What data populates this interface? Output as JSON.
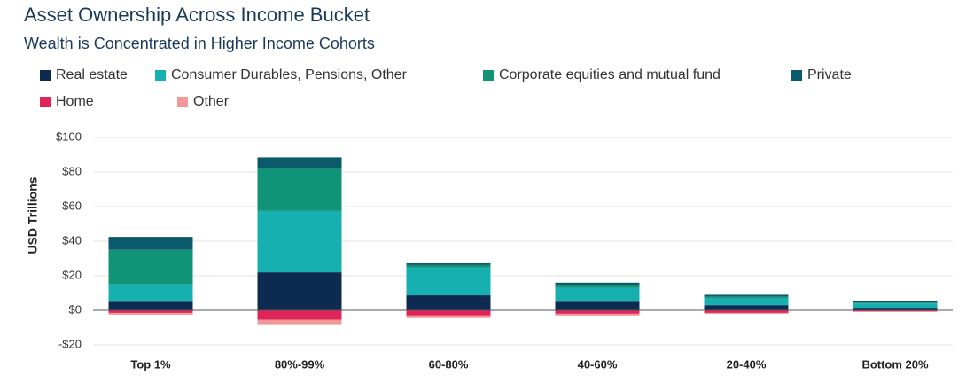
{
  "chart_data": {
    "type": "stacked_bar",
    "title": "Asset Ownership Across Income Bucket",
    "subtitle": "Wealth is Concentrated in Higher Income Cohorts",
    "y_label": "USD Trillions",
    "categories": [
      "Top 1%",
      "80%-99%",
      "60-80%",
      "40-60%",
      "20-40%",
      "Bottom 20%"
    ],
    "series": [
      {
        "name": "Real estate",
        "color": "#0d2b50",
        "values": [
          5,
          22,
          8.7,
          5,
          3,
          1.5
        ]
      },
      {
        "name": "Consumer Durables, Pensions, Other",
        "color": "#17b0b0",
        "values": [
          10,
          35.5,
          16,
          8,
          4,
          2.5
        ]
      },
      {
        "name": "Corporate equities and mutual fund",
        "color": "#119378",
        "values": [
          20,
          25,
          1.5,
          1.5,
          1,
          0.5
        ]
      },
      {
        "name": "Private",
        "color": "#0b5a6c",
        "values": [
          7.5,
          6,
          1,
          1.5,
          1,
          1
        ]
      },
      {
        "name": "Home",
        "color": "#e0245a",
        "values": [
          -1.5,
          -5.5,
          -3,
          -2,
          -1.5,
          -0.5
        ]
      },
      {
        "name": "Other",
        "color": "#f0979a",
        "values": [
          -1,
          -2.5,
          -1.5,
          -1,
          -0.5,
          -0.5
        ]
      }
    ],
    "ylim": [
      -20,
      100
    ],
    "yticks": [
      {
        "value": -20,
        "label": "-$20"
      },
      {
        "value": 0,
        "label": "$0"
      },
      {
        "value": 20,
        "label": "$20"
      },
      {
        "value": 40,
        "label": "$40"
      },
      {
        "value": 60,
        "label": "$60"
      },
      {
        "value": 80,
        "label": "$80"
      },
      {
        "value": 100,
        "label": "$100"
      }
    ],
    "grid": true
  }
}
